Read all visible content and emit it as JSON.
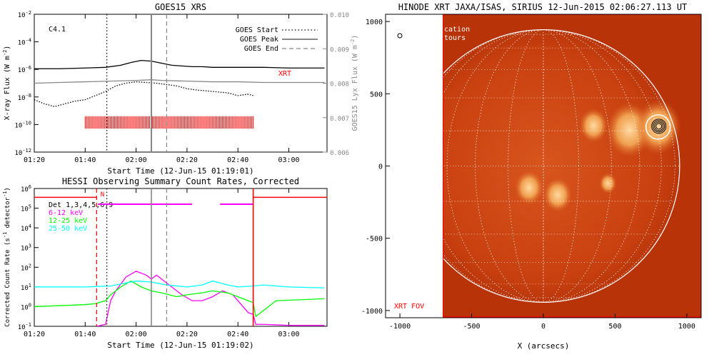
{
  "chart_data": [
    {
      "type": "line",
      "title": "GOES15 XRS",
      "xlabel": "Start Time (12-Jun-15 01:19:01)",
      "ylabel": "X-ray Flux (W m^-2)",
      "y2label": "GOES15 Lyx Flux (W m^-2)",
      "x_tick_labels": [
        "01:20",
        "01:40",
        "02:00",
        "02:20",
        "02:40",
        "03:00"
      ],
      "xlim_minutes": [
        0,
        115
      ],
      "y_tick_labels": [
        "10^-2",
        "10^-4",
        "10^-6",
        "10^-8",
        "10^-10",
        "10^-12"
      ],
      "ylim_log10": [
        -12,
        -2
      ],
      "y2_tick_labels": [
        "0.010",
        "0.009",
        "0.008",
        "0.007",
        "0.006"
      ],
      "y2lim": [
        0.006,
        0.01
      ],
      "flare_class": "C4.1",
      "xrt_label": "XRT",
      "legend": [
        {
          "name": "GOES Start",
          "style": "dotted",
          "minute": 28.5
        },
        {
          "name": "GOES Peak",
          "style": "solid",
          "minute": 46
        },
        {
          "name": "GOES End",
          "style": "dashed",
          "minute": 52
        }
      ],
      "legend_position": "top-right",
      "xrt_tick_range_minutes": [
        20,
        86
      ],
      "series": [
        {
          "name": "",
          "color": "#000000",
          "minutes": [
            0,
            10,
            20,
            28,
            34,
            38,
            42,
            46,
            50,
            54,
            58,
            62,
            66,
            70,
            80,
            90,
            100,
            114
          ],
          "log10_flux": [
            -5.95,
            -5.95,
            -5.9,
            -5.85,
            -5.7,
            -5.5,
            -5.35,
            -5.4,
            -5.55,
            -5.7,
            -5.75,
            -5.8,
            -5.8,
            -5.85,
            -5.85,
            -5.85,
            -5.9,
            -5.9
          ]
        },
        {
          "name": "",
          "color": "#888888",
          "minutes": [
            0,
            10,
            20,
            30,
            40,
            46,
            50,
            60,
            70,
            80,
            90,
            100,
            114
          ],
          "log10_flux": [
            -7.0,
            -6.95,
            -6.9,
            -6.85,
            -6.8,
            -6.75,
            -6.8,
            -6.85,
            -6.9,
            -6.9,
            -6.95,
            -6.95,
            -6.95
          ]
        },
        {
          "name": "",
          "color": "#000000",
          "style": "dotted",
          "minutes": [
            0,
            4,
            8,
            12,
            16,
            20,
            24,
            28,
            32,
            36,
            40,
            44,
            48,
            52,
            56,
            60,
            64,
            70,
            76,
            80,
            84,
            86
          ],
          "log10_flux": [
            -8.2,
            -8.5,
            -8.7,
            -8.5,
            -8.3,
            -8.2,
            -7.9,
            -7.6,
            -7.2,
            -7.0,
            -6.9,
            -6.95,
            -7.0,
            -7.1,
            -7.2,
            -7.4,
            -7.5,
            -7.6,
            -7.7,
            -7.9,
            -7.8,
            -7.9
          ]
        }
      ]
    },
    {
      "type": "line",
      "title": "HESSI Observing Summary Count Rates, Corrected",
      "xlabel": "Start Time (12-Jun-15 01:19:02)",
      "ylabel": "Corrected Count Rate (s^-1 detector^-1)",
      "x_tick_labels": [
        "01:20",
        "01:40",
        "02:00",
        "02:20",
        "02:40",
        "03:00"
      ],
      "xlim_minutes": [
        0,
        115
      ],
      "y_tick_labels": [
        "10^6",
        "10^5",
        "10^4",
        "10^3",
        "10^2",
        "10^1",
        "10^0",
        "10^-1"
      ],
      "ylim_log10": [
        -1,
        6
      ],
      "detectors_label": "Det 1,3,4,5,6,9",
      "night_label": "N",
      "legend_position": "top-left",
      "vertical_lines": [
        {
          "style": "dashed",
          "color": "#ff0000",
          "minute": 24.5
        },
        {
          "style": "dotted",
          "color": "#000000",
          "minute": 28.5
        },
        {
          "style": "solid",
          "color": "#888888",
          "minute": 46
        },
        {
          "style": "dashed",
          "color": "#888888",
          "minute": 52
        },
        {
          "style": "solid",
          "color": "#ff0000",
          "minute": 86
        }
      ],
      "magenta_bars_minutes": [
        [
          25,
          62
        ],
        [
          73,
          86
        ]
      ],
      "series": [
        {
          "name": "6-12 keV",
          "color": "#ff00ff",
          "minutes": [
            24.5,
            28,
            30,
            32,
            36,
            40,
            44,
            46,
            48,
            52,
            58,
            62,
            66,
            70,
            74,
            78,
            80,
            82,
            84,
            86,
            87,
            90,
            100,
            114
          ],
          "log10_rate": [
            -1,
            -0.9,
            0.3,
            0.8,
            1.5,
            1.8,
            1.6,
            1.4,
            1.6,
            1.2,
            0.6,
            0.3,
            0.3,
            0.5,
            0.8,
            0.6,
            0.3,
            0,
            -0.3,
            -0.4,
            -0.9,
            -0.9,
            -0.95,
            -0.95
          ]
        },
        {
          "name": "12-25 keV",
          "color": "#00ff00",
          "minutes": [
            0,
            10,
            20,
            24,
            28,
            30,
            34,
            38,
            42,
            46,
            50,
            56,
            60,
            66,
            70,
            76,
            80,
            84,
            86,
            87,
            95,
            105,
            114
          ],
          "log10_rate": [
            0,
            0.05,
            0.1,
            0.15,
            0.3,
            0.6,
            1.0,
            1.3,
            1.0,
            0.8,
            0.7,
            0.5,
            0.6,
            0.7,
            0.8,
            0.7,
            0.5,
            0.3,
            0.2,
            -0.5,
            0.3,
            0.35,
            0.4
          ]
        },
        {
          "name": "25-50 keV",
          "color": "#00ffff",
          "minutes": [
            0,
            10,
            20,
            30,
            36,
            40,
            46,
            52,
            60,
            66,
            70,
            76,
            80,
            86,
            90,
            100,
            114
          ],
          "log10_rate": [
            1.0,
            1.0,
            1.0,
            1.05,
            1.2,
            1.3,
            1.25,
            1.1,
            1.0,
            1.1,
            1.3,
            1.1,
            1.0,
            1.05,
            1.1,
            1.0,
            0.95
          ]
        }
      ]
    },
    {
      "type": "heatmap",
      "title": "HINODE XRT JAXA/ISAS, SIRIUS 12-Jun-2015 02:06:27.113 UT",
      "xlabel": "X (arcsecs)",
      "ylabel": "",
      "x_tick_labels": [
        "-1000",
        "-500",
        "0",
        "500",
        "1000"
      ],
      "y_tick_labels": [
        "1000",
        "500",
        "0",
        "-500",
        "-1000"
      ],
      "xlim": [
        -1100,
        1100
      ],
      "ylim": [
        -1050,
        1050
      ],
      "solar_radius_arcsec": 950,
      "fov_label": "XRT FOV",
      "overlay_text": [
        "cation",
        "tours"
      ],
      "fov_x_range": [
        -700,
        1100
      ],
      "fov_y_range": [
        -1050,
        1050
      ],
      "flare_location": [
        800,
        270
      ],
      "bright_regions": [
        {
          "x": 350,
          "y": 280,
          "size": "medium"
        },
        {
          "x": 600,
          "y": 250,
          "size": "large"
        },
        {
          "x": 800,
          "y": 270,
          "size": "large"
        },
        {
          "x": -100,
          "y": -150,
          "size": "medium"
        },
        {
          "x": 100,
          "y": -200,
          "size": "medium"
        },
        {
          "x": 450,
          "y": -120,
          "size": "small"
        }
      ]
    }
  ]
}
